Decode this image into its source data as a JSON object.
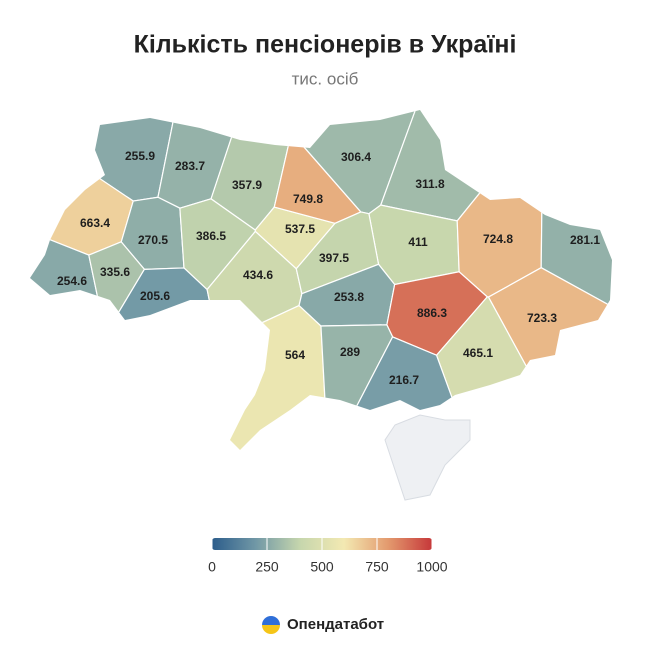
{
  "title": "Кількість пенсіонерів в Україні",
  "subtitle": "тис. осіб",
  "regions": [
    {
      "value": 255.9
    },
    {
      "value": 283.7
    },
    {
      "value": 357.9
    },
    {
      "value": 537.5
    },
    {
      "value": 749.8
    },
    {
      "value": 306.4
    },
    {
      "value": 311.8
    },
    {
      "value": 663.4
    },
    {
      "value": 270.5
    },
    {
      "value": 386.5
    },
    {
      "value": 411
    },
    {
      "value": 724.8
    },
    {
      "value": 281.1
    },
    {
      "value": 254.6
    },
    {
      "value": 335.6
    },
    {
      "value": 205.6
    },
    {
      "value": 434.6
    },
    {
      "value": 397.5
    },
    {
      "value": 253.8
    },
    {
      "value": 886.3
    },
    {
      "value": 723.3
    },
    {
      "value": 564
    },
    {
      "value": 289
    },
    {
      "value": 465.1
    },
    {
      "value": 216.7
    }
  ],
  "scale": {
    "range": [
      0,
      1000
    ],
    "ticks": [
      0,
      250,
      500,
      750,
      1000
    ],
    "colors": [
      "#2c5d8b",
      "#7198a6",
      "#c6d6ad",
      "#f3e9b2",
      "#e39a6e",
      "#c6383a"
    ]
  },
  "brand": "Опендатабот"
}
